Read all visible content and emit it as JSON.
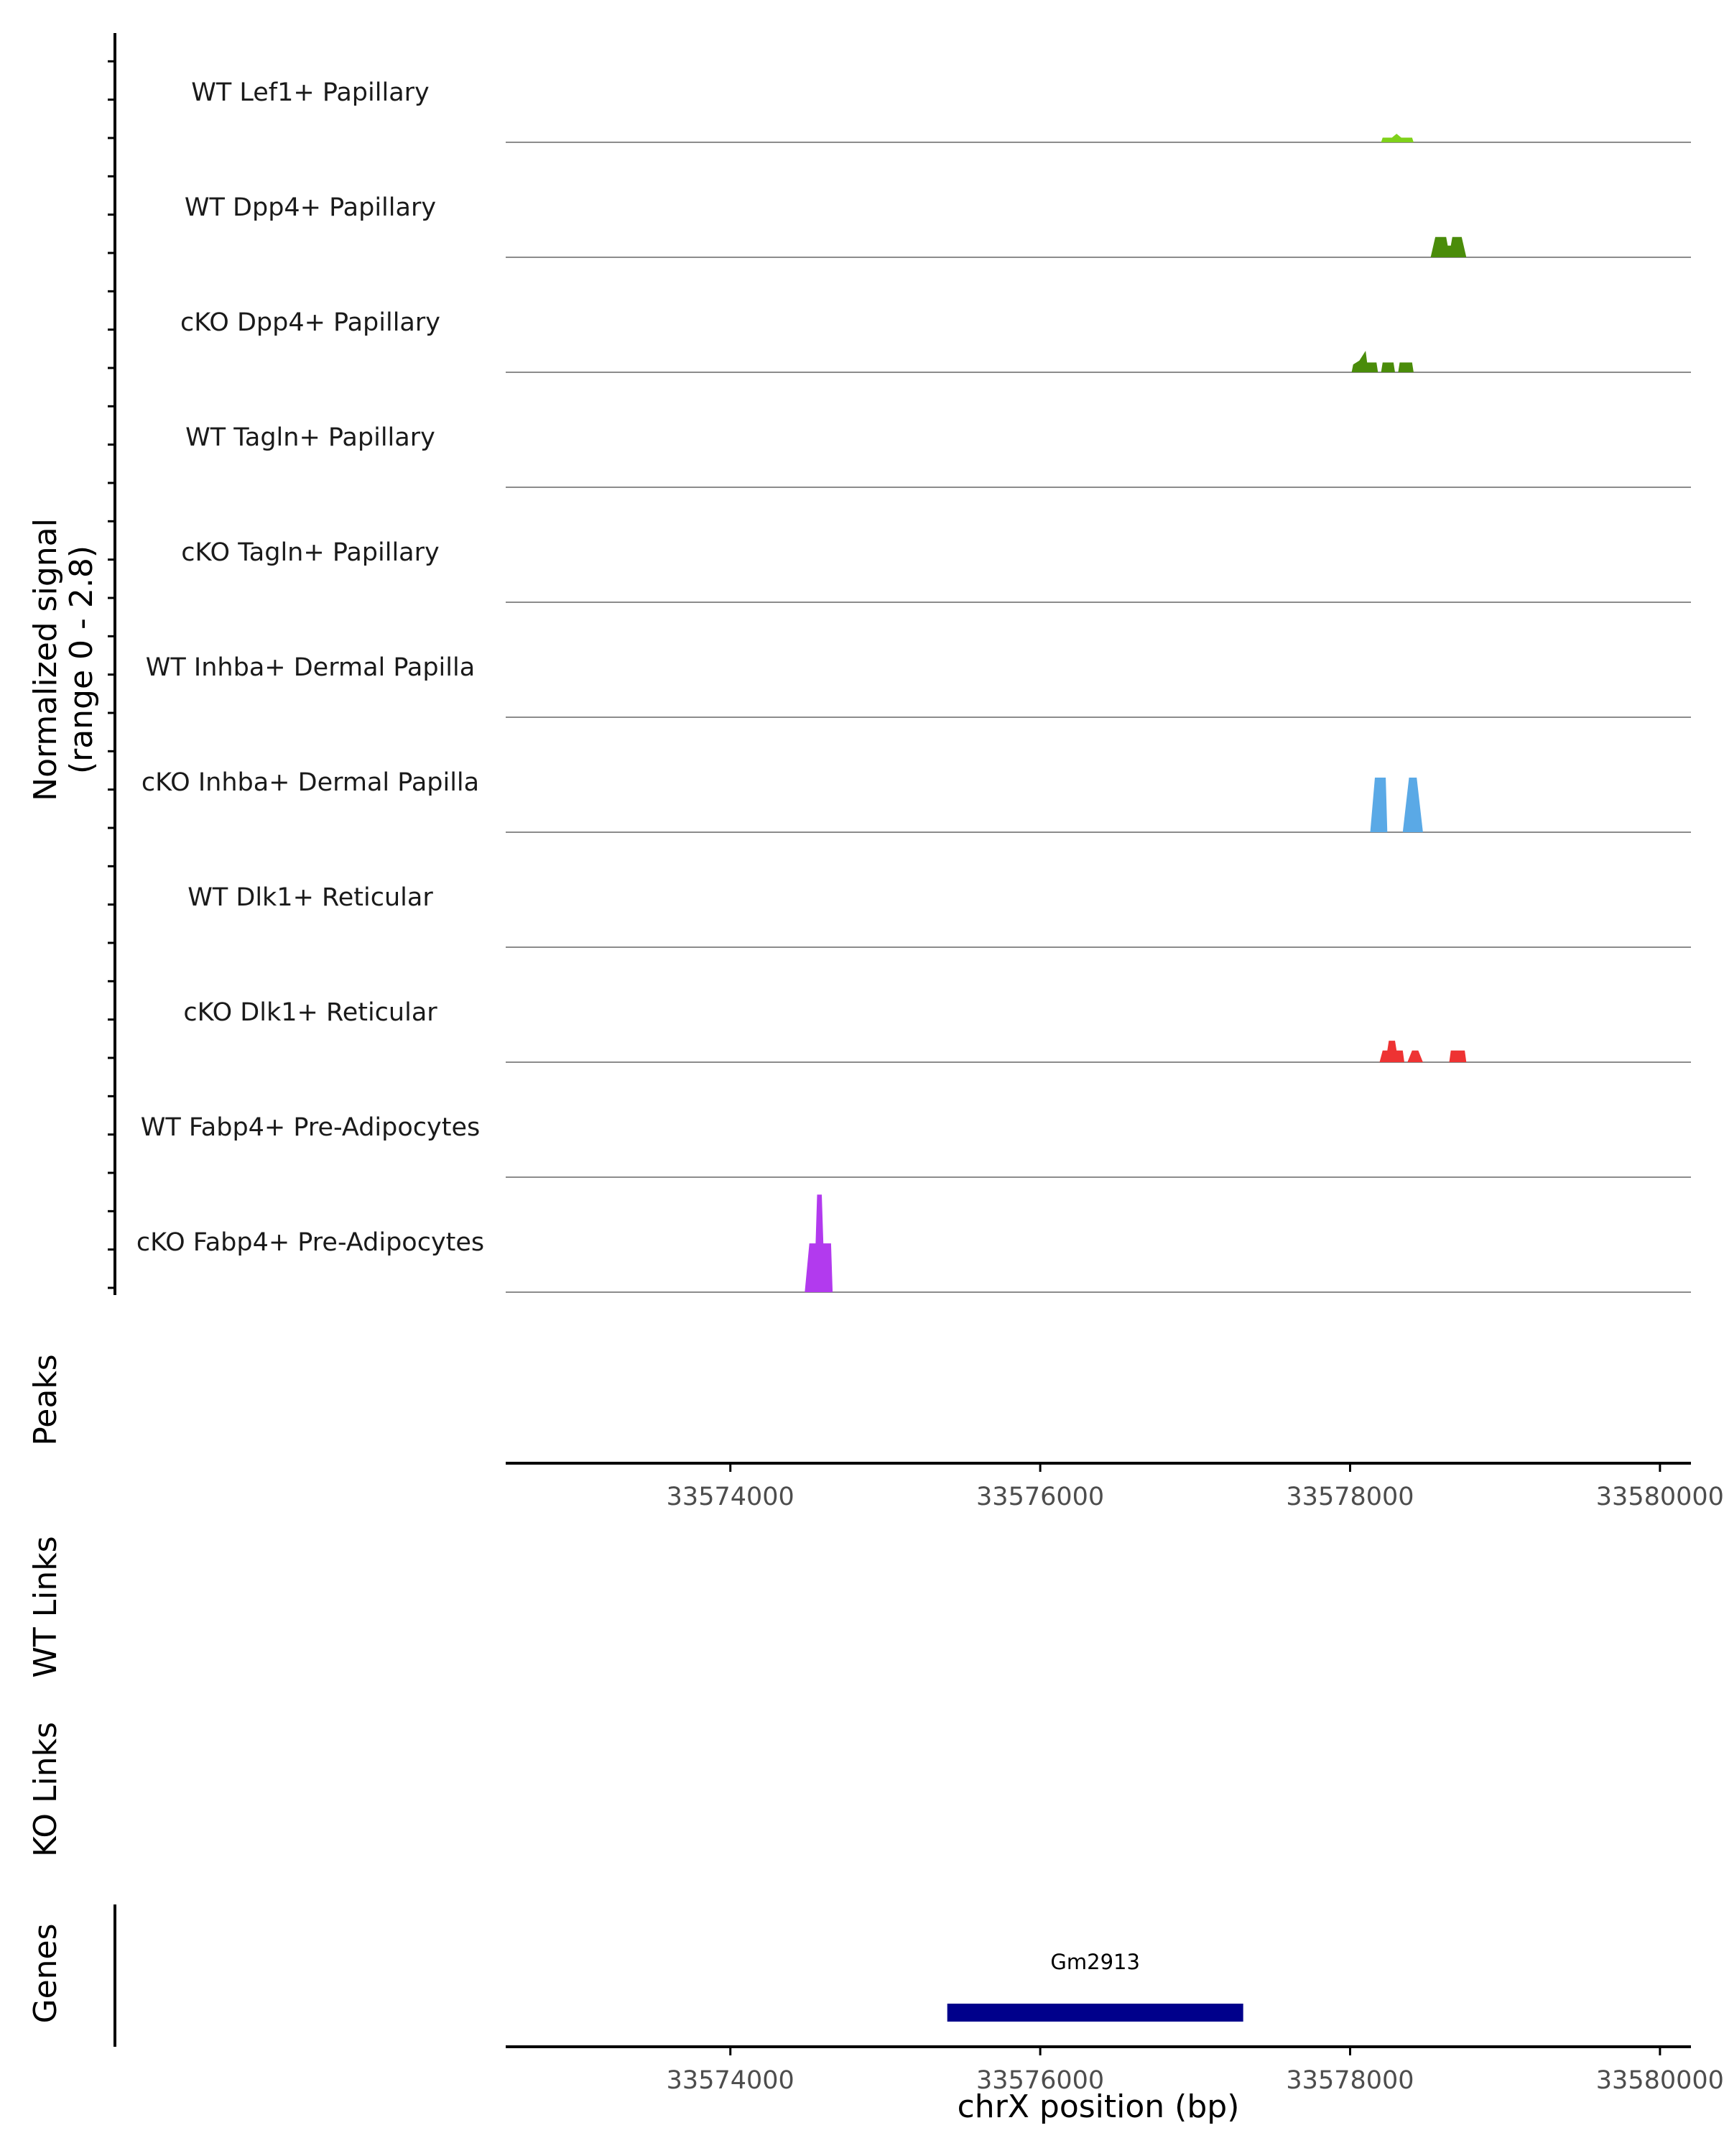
{
  "chart_data": {
    "type": "area",
    "title": "",
    "signal_axis_label": [
      "Normalized signal",
      "(range 0 - 2.8)"
    ],
    "signal_range": [
      0,
      2.8
    ],
    "xlabel": "chrX position (bp)",
    "xlim": [
      33572550,
      33580200
    ],
    "xticks": [
      33574000,
      33576000,
      33578000,
      33580000
    ],
    "xtick_labels": [
      "33574000",
      "33576000",
      "33578000",
      "33580000"
    ],
    "panel_labels": {
      "peaks": "Peaks",
      "wt_links": "WT Links",
      "ko_links": "KO Links",
      "genes": "Genes"
    },
    "tracks": [
      {
        "name": "WT Lef1+ Papillary",
        "color": "#7FD11A",
        "points": [
          [
            33578200,
            0
          ],
          [
            33578210,
            0.12
          ],
          [
            33578270,
            0.12
          ],
          [
            33578300,
            0.22
          ],
          [
            33578330,
            0.12
          ],
          [
            33578400,
            0.12
          ],
          [
            33578410,
            0
          ]
        ]
      },
      {
        "name": "WT Dpp4+ Papillary",
        "color": "#4A8C0A",
        "points": [
          [
            33578520,
            0
          ],
          [
            33578550,
            0.52
          ],
          [
            33578620,
            0.52
          ],
          [
            33578630,
            0.3
          ],
          [
            33578650,
            0.3
          ],
          [
            33578660,
            0.52
          ],
          [
            33578720,
            0.52
          ],
          [
            33578750,
            0
          ]
        ]
      },
      {
        "name": "cKO Dpp4+ Papillary",
        "color": "#4A8C0A",
        "points": [
          [
            33578010,
            0
          ],
          [
            33578020,
            0.2
          ],
          [
            33578060,
            0.3
          ],
          [
            33578100,
            0.55
          ],
          [
            33578110,
            0.25
          ],
          [
            33578170,
            0.25
          ],
          [
            33578180,
            0
          ],
          [
            33578200,
            0
          ],
          [
            33578210,
            0.25
          ],
          [
            33578280,
            0.25
          ],
          [
            33578290,
            0
          ],
          [
            33578310,
            0
          ],
          [
            33578320,
            0.25
          ],
          [
            33578400,
            0.25
          ],
          [
            33578410,
            0
          ]
        ]
      },
      {
        "name": "WT Tagln+ Papillary",
        "color": "#2A9D8F",
        "points": []
      },
      {
        "name": "cKO Tagln+ Papillary",
        "color": "#2A9D8F",
        "points": []
      },
      {
        "name": "WT Inhba+ Dermal Papilla",
        "color": "#5AA9E6",
        "points": []
      },
      {
        "name": "cKO Inhba+ Dermal Papilla",
        "color": "#5AA9E6",
        "points": [
          [
            33578130,
            0
          ],
          [
            33578160,
            1.4
          ],
          [
            33578230,
            1.4
          ],
          [
            33578240,
            0
          ],
          [
            33578340,
            0
          ],
          [
            33578380,
            1.4
          ],
          [
            33578430,
            1.4
          ],
          [
            33578470,
            0
          ]
        ]
      },
      {
        "name": "WT Dlk1+ Reticular",
        "color": "#EE3333",
        "points": []
      },
      {
        "name": "cKO Dlk1+ Reticular",
        "color": "#EE3333",
        "points": [
          [
            33578190,
            0
          ],
          [
            33578210,
            0.3
          ],
          [
            33578240,
            0.3
          ],
          [
            33578250,
            0.55
          ],
          [
            33578290,
            0.55
          ],
          [
            33578300,
            0.3
          ],
          [
            33578340,
            0.3
          ],
          [
            33578350,
            0
          ],
          [
            33578370,
            0
          ],
          [
            33578400,
            0.3
          ],
          [
            33578440,
            0.3
          ],
          [
            33578470,
            0
          ],
          [
            33578640,
            0
          ],
          [
            33578650,
            0.3
          ],
          [
            33578740,
            0.3
          ],
          [
            33578750,
            0
          ]
        ]
      },
      {
        "name": "WT Fabp4+ Pre-Adipocytes",
        "color": "#B23AEE",
        "points": []
      },
      {
        "name": "cKO Fabp4+ Pre-Adipocytes",
        "color": "#B23AEE",
        "points": [
          [
            33574480,
            0
          ],
          [
            33574510,
            1.25
          ],
          [
            33574550,
            1.25
          ],
          [
            33574560,
            2.5
          ],
          [
            33574590,
            2.5
          ],
          [
            33574600,
            1.25
          ],
          [
            33574650,
            1.25
          ],
          [
            33574660,
            0
          ]
        ]
      }
    ],
    "genes": [
      {
        "name": "Gm2913",
        "start": 33575400,
        "end": 33577310,
        "color": "#00008B"
      }
    ]
  }
}
